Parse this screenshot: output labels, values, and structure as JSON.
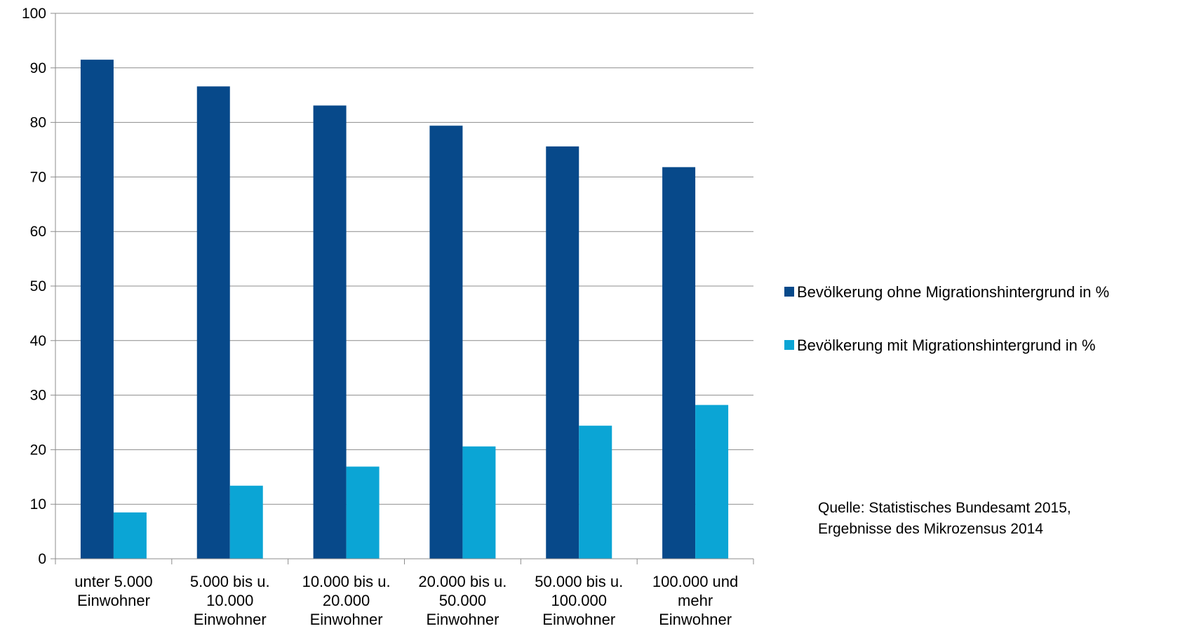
{
  "chart_data": {
    "type": "bar",
    "title": "",
    "xlabel": "",
    "ylabel": "",
    "ylim": [
      0,
      100
    ],
    "yticks": [
      0,
      10,
      20,
      30,
      40,
      50,
      60,
      70,
      80,
      90,
      100
    ],
    "grid": true,
    "legend_position": "right",
    "categories": [
      [
        "unter 5.000",
        "Einwohner"
      ],
      [
        "5.000 bis u.",
        "10.000",
        "Einwohner"
      ],
      [
        "10.000 bis u.",
        "20.000",
        "Einwohner"
      ],
      [
        "20.000 bis u.",
        "50.000",
        "Einwohner"
      ],
      [
        "50.000 bis u.",
        "100.000",
        "Einwohner"
      ],
      [
        "100.000 und",
        "mehr",
        "Einwohner"
      ]
    ],
    "series": [
      {
        "name": "Bevölkerung ohne Migrationshintergrund in %",
        "color": "#07498A",
        "values": [
          91.5,
          86.6,
          83.1,
          79.4,
          75.6,
          71.8
        ]
      },
      {
        "name": "Bevölkerung mit Migrationshintergrund in %",
        "color": "#0BA5D5",
        "values": [
          8.5,
          13.4,
          16.9,
          20.6,
          24.4,
          28.2
        ]
      }
    ],
    "annotation": [
      "Quelle: Statistisches Bundesamt 2015,",
      "Ergebnisse des Mikrozensus 2014"
    ]
  }
}
